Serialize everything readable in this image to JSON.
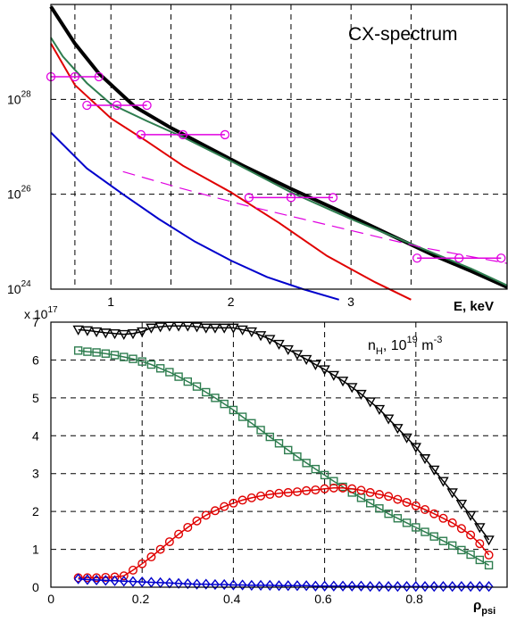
{
  "chart_data": [
    {
      "type": "line",
      "title": "",
      "annotation": "CX-spectrum",
      "xlabel": "E, keV",
      "ylabel": "",
      "yscale": "log",
      "xlim": [
        0.5,
        4.3
      ],
      "ylim": [
        1e+24,
        1e+30
      ],
      "xticks": [
        1,
        2,
        3
      ],
      "xtick_labels": [
        "1",
        "2",
        "3"
      ],
      "yticks": [
        1e+24,
        1e+26,
        1e+28
      ],
      "ytick_labels": [
        {
          "base": "10",
          "exp": "24"
        },
        {
          "base": "10",
          "exp": "26"
        },
        {
          "base": "10",
          "exp": "28"
        }
      ],
      "grid": true,
      "colors": {
        "black": "#000000",
        "green": "#2e7d4f",
        "red": "#e00000",
        "blue": "#0000cc",
        "magenta": "#e000e0"
      },
      "series": [
        {
          "color": "#000000",
          "style": "solid-thick",
          "x": [
            0.5,
            0.7,
            0.9,
            1.2,
            1.5,
            1.8,
            2.1,
            2.5,
            2.9,
            3.3,
            3.7,
            4.0,
            4.3
          ],
          "y": [
            9e+29,
            1.5e+29,
            3.5e+28,
            7e+27,
            2.5e+27,
            1e+27,
            4e+26,
            1.3e+26,
            4.5e+25,
            1.5e+25,
            5e+24,
            2.4e+24,
            1.1e+24
          ]
        },
        {
          "color": "#2e7d4f",
          "style": "solid",
          "x": [
            0.5,
            0.6,
            0.8,
            1.0,
            1.3,
            1.6,
            2.0,
            2.5,
            3.0,
            3.5,
            4.0,
            4.3
          ],
          "y": [
            2e+29,
            8e+28,
            2.2e+28,
            8e+27,
            3.5e+27,
            1.6e+27,
            5e+26,
            1.1e+26,
            3e+25,
            9e+24,
            2.7e+24,
            1.2e+24
          ]
        },
        {
          "color": "#e00000",
          "style": "solid",
          "x": [
            0.5,
            0.7,
            1.0,
            1.3,
            1.6,
            2.0,
            2.4,
            2.8,
            3.2,
            3.5
          ],
          "y": [
            1.5e+29,
            2e+28,
            4e+27,
            1.3e+27,
            4e+26,
            1.1e+26,
            2.5e+25,
            5e+24,
            1.4e+24,
            6e+23
          ]
        },
        {
          "color": "#0000cc",
          "style": "solid",
          "x": [
            0.5,
            0.8,
            1.1,
            1.4,
            1.7,
            2.0,
            2.3,
            2.6,
            2.9
          ],
          "y": [
            2e+27,
            3.5e+26,
            1e+26,
            3e+25,
            1e+25,
            4e+24,
            1.8e+24,
            1e+24,
            6e+23
          ]
        },
        {
          "color": "#e000e0",
          "style": "dashed",
          "x": [
            1.1,
            1.6,
            2.1,
            2.6,
            3.1,
            3.6,
            4.3
          ],
          "y": [
            3e+26,
            1.3e+26,
            6e+25,
            3e+25,
            1.5e+25,
            7.5e+24,
            3.5e+24
          ]
        }
      ],
      "points": {
        "color": "#e000e0",
        "marker": "circle",
        "data": [
          {
            "x": 0.7,
            "y": 3e+28,
            "xerr": 0.2
          },
          {
            "x": 1.05,
            "y": 7.5e+27,
            "xerr": 0.25
          },
          {
            "x": 1.6,
            "y": 1.8e+27,
            "xerr": 0.35
          },
          {
            "x": 2.5,
            "y": 8.5e+25,
            "xerr": 0.35
          },
          {
            "x": 3.9,
            "y": 4.5e+24,
            "xerr": 0.35
          }
        ]
      }
    },
    {
      "type": "line",
      "title": "",
      "annotation": {
        "main": "n",
        "sub": "H",
        "middle": ", 10",
        "sup1": "19",
        "unit": " m",
        "sup2": "-3"
      },
      "xlabel": {
        "main": "ρ",
        "sub": "psi"
      },
      "ylabel": "",
      "yscale_label": {
        "text": "x 10",
        "exp": "17"
      },
      "xlim": [
        0,
        1
      ],
      "ylim": [
        0,
        7
      ],
      "xticks": [
        0,
        0.2,
        0.4,
        0.6,
        0.8
      ],
      "xtick_labels": [
        "0",
        "0.2",
        "0.4",
        "0.6",
        "0.8"
      ],
      "yticks": [
        0,
        1,
        2,
        3,
        4,
        5,
        6,
        7
      ],
      "ytick_labels": [
        "0",
        "1",
        "2",
        "3",
        "4",
        "5",
        "6",
        "7"
      ],
      "grid": true,
      "x": [
        0.06,
        0.08,
        0.1,
        0.12,
        0.14,
        0.16,
        0.18,
        0.2,
        0.22,
        0.24,
        0.26,
        0.28,
        0.3,
        0.32,
        0.34,
        0.36,
        0.38,
        0.4,
        0.42,
        0.44,
        0.46,
        0.48,
        0.5,
        0.52,
        0.54,
        0.56,
        0.58,
        0.6,
        0.62,
        0.64,
        0.66,
        0.68,
        0.7,
        0.72,
        0.74,
        0.76,
        0.78,
        0.8,
        0.82,
        0.84,
        0.86,
        0.88,
        0.9,
        0.92,
        0.94,
        0.96
      ],
      "series": [
        {
          "color": "#000000",
          "marker": "triangle-down",
          "y": [
            6.8,
            6.78,
            6.75,
            6.72,
            6.7,
            6.68,
            6.7,
            6.75,
            6.85,
            6.88,
            6.9,
            6.9,
            6.9,
            6.88,
            6.85,
            6.85,
            6.85,
            6.85,
            6.8,
            6.75,
            6.65,
            6.55,
            6.42,
            6.28,
            6.15,
            6.02,
            5.88,
            5.75,
            5.6,
            5.45,
            5.28,
            5.1,
            4.9,
            4.7,
            4.45,
            4.2,
            3.95,
            3.7,
            3.4,
            3.1,
            2.8,
            2.5,
            2.2,
            1.9,
            1.58,
            1.25
          ]
        },
        {
          "color": "#2e7d4f",
          "marker": "square",
          "y": [
            6.25,
            6.22,
            6.2,
            6.17,
            6.13,
            6.08,
            6.03,
            5.96,
            5.88,
            5.78,
            5.68,
            5.56,
            5.43,
            5.3,
            5.15,
            5.0,
            4.84,
            4.68,
            4.5,
            4.33,
            4.15,
            3.97,
            3.8,
            3.62,
            3.45,
            3.28,
            3.12,
            2.96,
            2.8,
            2.65,
            2.5,
            2.36,
            2.22,
            2.08,
            1.94,
            1.82,
            1.7,
            1.58,
            1.46,
            1.34,
            1.22,
            1.1,
            0.98,
            0.86,
            0.72,
            0.58
          ]
        },
        {
          "color": "#e00000",
          "marker": "circle",
          "y": [
            0.25,
            0.25,
            0.25,
            0.26,
            0.27,
            0.3,
            0.45,
            0.62,
            0.8,
            1.0,
            1.2,
            1.4,
            1.58,
            1.75,
            1.9,
            2.02,
            2.13,
            2.22,
            2.3,
            2.36,
            2.41,
            2.45,
            2.48,
            2.5,
            2.52,
            2.55,
            2.57,
            2.6,
            2.62,
            2.62,
            2.6,
            2.56,
            2.5,
            2.45,
            2.4,
            2.32,
            2.24,
            2.15,
            2.05,
            1.94,
            1.82,
            1.7,
            1.55,
            1.38,
            1.15,
            0.85
          ]
        },
        {
          "color": "#0000cc",
          "marker": "diamond",
          "y": [
            0.22,
            0.2,
            0.19,
            0.18,
            0.17,
            0.16,
            0.15,
            0.14,
            0.13,
            0.12,
            0.11,
            0.1,
            0.09,
            0.08,
            0.08,
            0.07,
            0.07,
            0.06,
            0.06,
            0.05,
            0.05,
            0.05,
            0.04,
            0.04,
            0.04,
            0.04,
            0.03,
            0.03,
            0.03,
            0.03,
            0.03,
            0.03,
            0.02,
            0.02,
            0.02,
            0.02,
            0.02,
            0.02,
            0.02,
            0.02,
            0.02,
            0.02,
            0.02,
            0.02,
            0.02,
            0.02
          ]
        }
      ]
    }
  ]
}
